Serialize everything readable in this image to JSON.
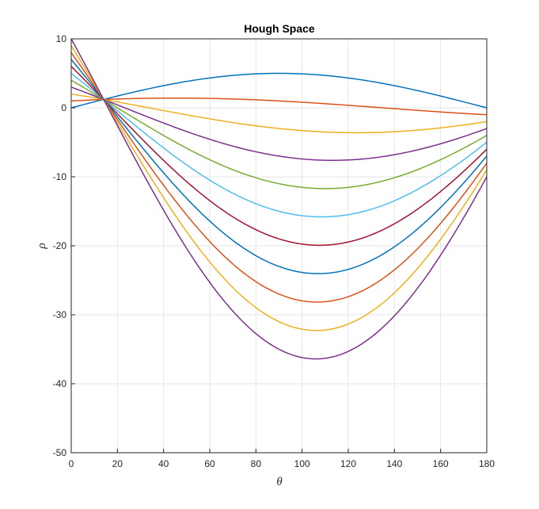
{
  "chart_data": {
    "type": "line",
    "title": "Hough Space",
    "xlabel": "θ",
    "ylabel": "ρ",
    "xlim": [
      0,
      180
    ],
    "ylim": [
      -50,
      10
    ],
    "xticks": [
      0,
      20,
      40,
      60,
      80,
      100,
      120,
      140,
      160,
      180
    ],
    "yticks": [
      10,
      0,
      -10,
      -20,
      -30,
      -40,
      -50
    ],
    "grid": true,
    "legend": "none",
    "model": "rho = x*cos(theta) + y*sin(theta)",
    "series": [
      {
        "x_param": 0,
        "y_param": 5,
        "color": "#0072BD"
      },
      {
        "x_param": 1,
        "y_param": 1,
        "color": "#D95319"
      },
      {
        "x_param": 2,
        "y_param": -3,
        "color": "#EDB120"
      },
      {
        "x_param": 3,
        "y_param": -7,
        "color": "#7E2F8E"
      },
      {
        "x_param": 4,
        "y_param": -11,
        "color": "#77AC30"
      },
      {
        "x_param": 5,
        "y_param": -15,
        "color": "#4DBEEE"
      },
      {
        "x_param": 6,
        "y_param": -19,
        "color": "#A2142F"
      },
      {
        "x_param": 7,
        "y_param": -23,
        "color": "#0072BD"
      },
      {
        "x_param": 8,
        "y_param": -27,
        "color": "#D95319"
      },
      {
        "x_param": 9,
        "y_param": -31,
        "color": "#EDB120"
      },
      {
        "x_param": 10,
        "y_param": -35,
        "color": "#7E2F8E"
      }
    ]
  }
}
